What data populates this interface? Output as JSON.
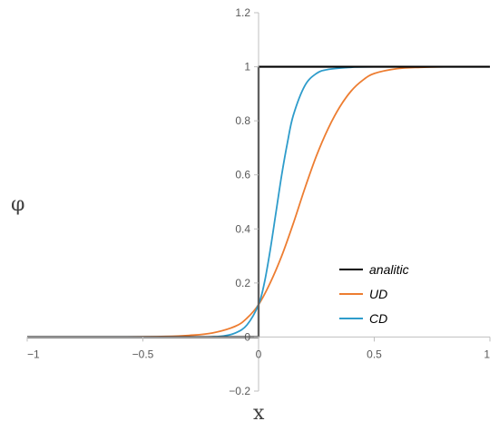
{
  "chart_data": {
    "type": "line",
    "title": "",
    "xlabel": "x",
    "ylabel": "φ",
    "xlim": [
      -1,
      1
    ],
    "ylim": [
      -0.2,
      1.2
    ],
    "xticks": [
      -1,
      -0.5,
      0,
      0.5,
      1
    ],
    "yticks": [
      -0.2,
      0,
      0.2,
      0.4,
      0.6,
      0.8,
      1,
      1.2
    ],
    "xtick_labels": [
      "−1",
      "−0.5",
      "0",
      "0.5",
      "1"
    ],
    "ytick_labels": [
      "−0.2",
      "0",
      "0.2",
      "0.4",
      "0.6",
      "0.8",
      "1",
      "1.2"
    ],
    "grid": false,
    "legend_position": "bottom-right",
    "series": [
      {
        "name": "analitic",
        "color": "#000000",
        "x": [
          -1,
          0,
          0,
          1
        ],
        "y": [
          0,
          0,
          1,
          1
        ]
      },
      {
        "name": "UD",
        "color": "#ED7D31",
        "x": [
          -1,
          -0.6,
          -0.4,
          -0.3,
          -0.2,
          -0.1,
          -0.05,
          0,
          0.05,
          0.1,
          0.15,
          0.2,
          0.25,
          0.3,
          0.35,
          0.4,
          0.45,
          0.5,
          0.6,
          0.7,
          0.8,
          1
        ],
        "y": [
          0,
          0,
          0.002,
          0.006,
          0.015,
          0.04,
          0.07,
          0.12,
          0.2,
          0.3,
          0.42,
          0.55,
          0.67,
          0.77,
          0.85,
          0.91,
          0.95,
          0.975,
          0.993,
          0.998,
          1,
          1
        ]
      },
      {
        "name": "CD",
        "color": "#2E9CCB",
        "x": [
          -1,
          -0.3,
          -0.2,
          -0.15,
          -0.1,
          -0.05,
          0,
          0.025,
          0.05,
          0.075,
          0.1,
          0.125,
          0.15,
          0.2,
          0.25,
          0.3,
          0.4,
          0.5,
          1
        ],
        "y": [
          0,
          0,
          0.001,
          0.004,
          0.015,
          0.045,
          0.12,
          0.2,
          0.32,
          0.46,
          0.6,
          0.72,
          0.82,
          0.93,
          0.975,
          0.99,
          0.998,
          1,
          1
        ]
      }
    ]
  }
}
